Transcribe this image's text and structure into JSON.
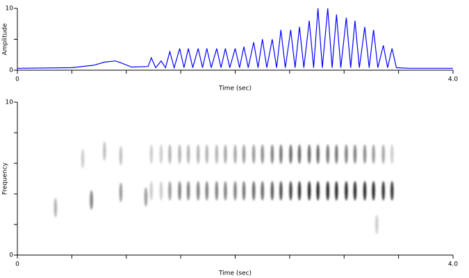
{
  "chart_data": [
    {
      "type": "line",
      "y_label": "Amplitude",
      "x_label": "Time (sec)",
      "color": "#0000ff",
      "x": [
        0,
        0.5,
        0.7,
        0.8,
        0.9,
        0.95,
        1.05,
        1.2,
        1.23,
        1.27,
        1.32,
        1.36,
        1.4,
        1.44,
        1.49,
        1.53,
        1.57,
        1.61,
        1.66,
        1.7,
        1.74,
        1.78,
        1.83,
        1.87,
        1.91,
        1.95,
        2.0,
        2.04,
        2.08,
        2.12,
        2.17,
        2.21,
        2.25,
        2.29,
        2.34,
        2.38,
        2.42,
        2.46,
        2.51,
        2.55,
        2.59,
        2.63,
        2.68,
        2.72,
        2.76,
        2.8,
        2.85,
        2.89,
        2.93,
        2.97,
        3.02,
        3.06,
        3.1,
        3.14,
        3.19,
        3.23,
        3.27,
        3.31,
        3.36,
        3.4,
        3.44,
        3.48,
        3.6,
        4.0
      ],
      "values": [
        0.3,
        0.4,
        0.8,
        1.3,
        1.5,
        1.2,
        0.5,
        0.6,
        2,
        0.4,
        1.5,
        0.4,
        3,
        0.4,
        3.5,
        0.4,
        3.5,
        0.4,
        3.5,
        0.4,
        3.5,
        0.4,
        3.5,
        0.4,
        3.5,
        0.4,
        3.5,
        0.4,
        3.8,
        0.4,
        4.5,
        0.4,
        5,
        0.4,
        5,
        0.4,
        6.5,
        0.4,
        6.5,
        0.4,
        7,
        0.4,
        8,
        0.4,
        10,
        0.4,
        10,
        0.4,
        9,
        0.4,
        8.5,
        0.4,
        8,
        0.4,
        7,
        0.4,
        6.5,
        0.4,
        4,
        0.4,
        3.5,
        0.4,
        0.3,
        0.3
      ],
      "xlim": [
        0,
        4
      ],
      "ylim": [
        0,
        10
      ],
      "xticks": [
        0,
        {
          "value": 4,
          "label": "4.0"
        }
      ],
      "xminorticks": [
        0.5,
        1,
        1.5,
        2,
        2.5,
        3,
        3.5
      ],
      "yticks": [
        0,
        10
      ],
      "yminorticks": [
        5
      ]
    },
    {
      "type": "spectrogram",
      "y_label": "Frequency",
      "x_label": "Time (sec)",
      "color": "#000000",
      "x": [
        1.23,
        1.32,
        1.4,
        1.49,
        1.57,
        1.66,
        1.74,
        1.83,
        1.91,
        2.0,
        2.08,
        2.17,
        2.25,
        2.34,
        2.42,
        2.51,
        2.59,
        2.68,
        2.76,
        2.85,
        2.93,
        3.02,
        3.1,
        3.19,
        3.27,
        3.36,
        3.44,
        1.23,
        1.32,
        1.4,
        1.49,
        1.57,
        1.66,
        1.74,
        1.83,
        1.91,
        2.0,
        2.08,
        2.17,
        2.25,
        2.34,
        2.42,
        2.51,
        2.59,
        2.68,
        2.76,
        2.85,
        2.93,
        3.02,
        3.1,
        3.19,
        3.27,
        3.36,
        3.44,
        0.35,
        0.68,
        0.95,
        1.18,
        0.6,
        0.8,
        0.95,
        3.3
      ],
      "y": [
        4.2,
        4.2,
        4.2,
        4.2,
        4.2,
        4.2,
        4.2,
        4.2,
        4.2,
        4.2,
        4.2,
        4.2,
        4.2,
        4.2,
        4.2,
        4.2,
        4.2,
        4.2,
        4.2,
        4.2,
        4.2,
        4.2,
        4.2,
        4.2,
        4.2,
        4.2,
        4.2,
        6.6,
        6.6,
        6.6,
        6.6,
        6.6,
        6.6,
        6.6,
        6.6,
        6.6,
        6.6,
        6.6,
        6.6,
        6.6,
        6.6,
        6.6,
        6.6,
        6.6,
        6.6,
        6.6,
        6.6,
        6.6,
        6.6,
        6.6,
        6.6,
        6.6,
        6.6,
        6.6,
        3.1,
        3.6,
        4.1,
        3.8,
        6.3,
        6.8,
        6.5,
        2.0
      ],
      "intensity": [
        0.2,
        0.2,
        0.4,
        0.5,
        0.5,
        0.5,
        0.5,
        0.5,
        0.5,
        0.5,
        0.55,
        0.6,
        0.6,
        0.65,
        0.7,
        0.75,
        0.8,
        0.85,
        0.85,
        0.85,
        0.85,
        0.85,
        0.85,
        0.85,
        0.85,
        0.8,
        0.8,
        0.2,
        0.2,
        0.3,
        0.3,
        0.3,
        0.3,
        0.3,
        0.3,
        0.35,
        0.35,
        0.4,
        0.4,
        0.45,
        0.5,
        0.55,
        0.6,
        0.6,
        0.6,
        0.6,
        0.55,
        0.55,
        0.5,
        0.5,
        0.45,
        0.4,
        0.35,
        0.2,
        0.3,
        0.5,
        0.4,
        0.4,
        0.2,
        0.25,
        0.25,
        0.2
      ],
      "xlim": [
        0,
        4
      ],
      "ylim": [
        0,
        10
      ],
      "xticks": [
        0,
        {
          "value": 4,
          "label": "4.0"
        }
      ],
      "xminorticks": [
        0.5,
        1,
        1.5,
        2,
        2.5,
        3,
        3.5
      ],
      "yticks": [
        0,
        10
      ],
      "yminorticks": [
        2,
        4,
        6,
        8
      ]
    }
  ]
}
